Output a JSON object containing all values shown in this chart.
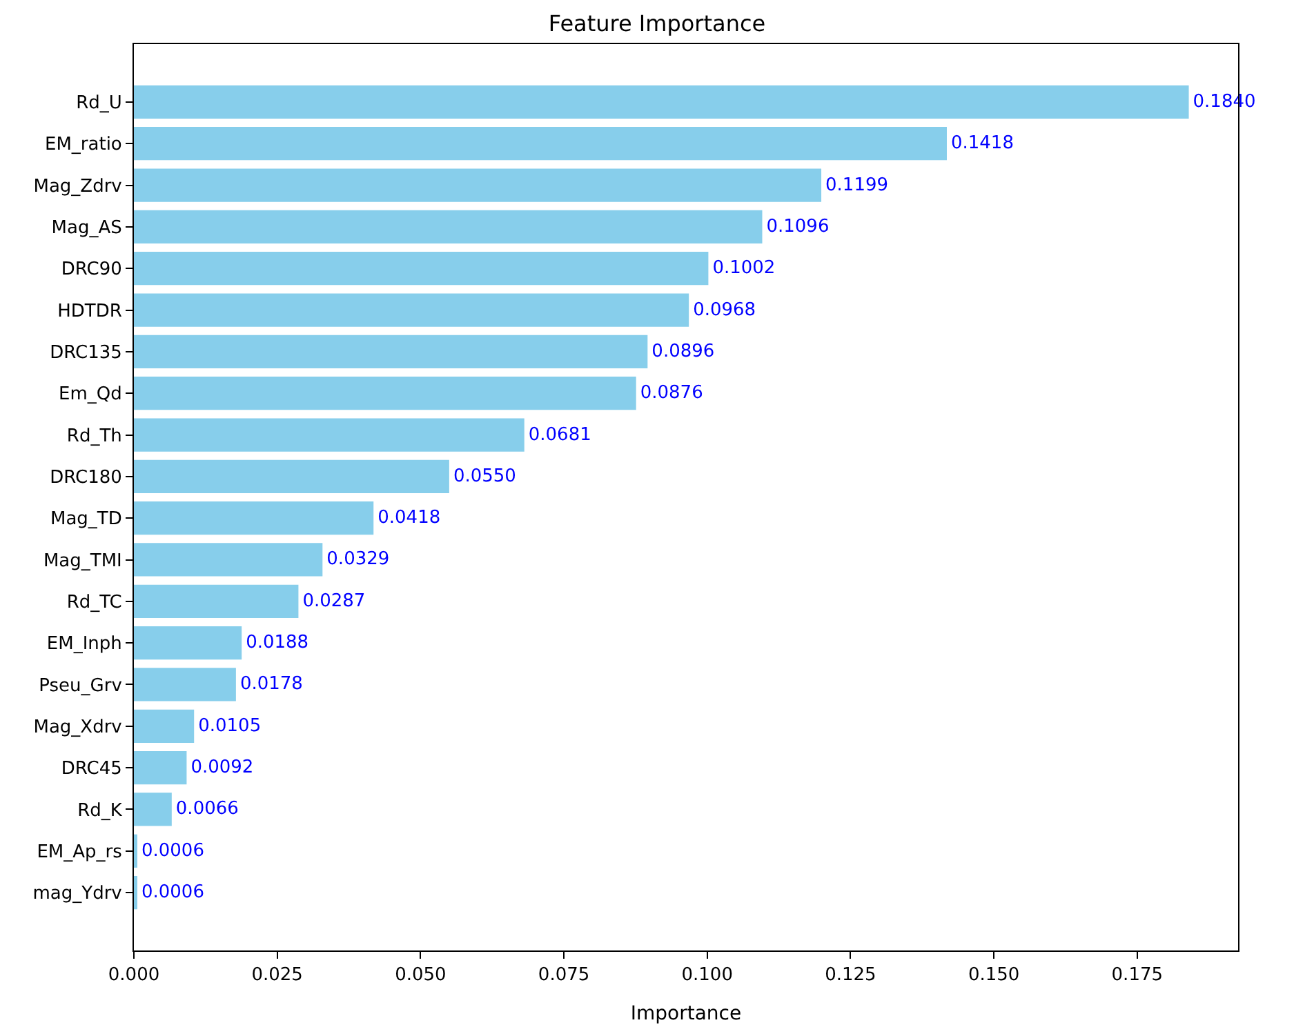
{
  "chart_data": {
    "type": "bar",
    "orientation": "horizontal",
    "title": "Feature Importance",
    "xlabel": "Importance",
    "categories": [
      "Rd_U",
      "EM_ratio",
      "Mag_Zdrv",
      "Mag_AS",
      "DRC90",
      "HDTDR",
      "DRC135",
      "Em_Qd",
      "Rd_Th",
      "DRC180",
      "Mag_TD",
      "Mag_TMI",
      "Rd_TC",
      "EM_Inph",
      "Pseu_Grv",
      "Mag_Xdrv",
      "DRC45",
      "Rd_K",
      "EM_Ap_rs",
      "mag_Ydrv"
    ],
    "values": [
      0.184,
      0.1418,
      0.1199,
      0.1096,
      0.1002,
      0.0968,
      0.0896,
      0.0876,
      0.0681,
      0.055,
      0.0418,
      0.0329,
      0.0287,
      0.0188,
      0.0178,
      0.0105,
      0.0092,
      0.0066,
      0.0006,
      0.0006
    ],
    "value_labels": [
      "0.1840",
      "0.1418",
      "0.1199",
      "0.1096",
      "0.1002",
      "0.0968",
      "0.0896",
      "0.0876",
      "0.0681",
      "0.0550",
      "0.0418",
      "0.0329",
      "0.0287",
      "0.0188",
      "0.0178",
      "0.0105",
      "0.0092",
      "0.0066",
      "0.0006",
      "0.0006"
    ],
    "color": "#87ceeb",
    "xlim": [
      0,
      0.1926
    ],
    "xticks": [
      {
        "value": 0,
        "label": "0.000"
      },
      {
        "value": 0.025,
        "label": "0.025"
      },
      {
        "value": 0.05,
        "label": "0.050"
      },
      {
        "value": 0.075,
        "label": "0.075"
      },
      {
        "value": 0.1,
        "label": "0.100"
      },
      {
        "value": 0.125,
        "label": "0.125"
      },
      {
        "value": 0.15,
        "label": "0.150"
      },
      {
        "value": 0.175,
        "label": "0.175"
      }
    ]
  }
}
